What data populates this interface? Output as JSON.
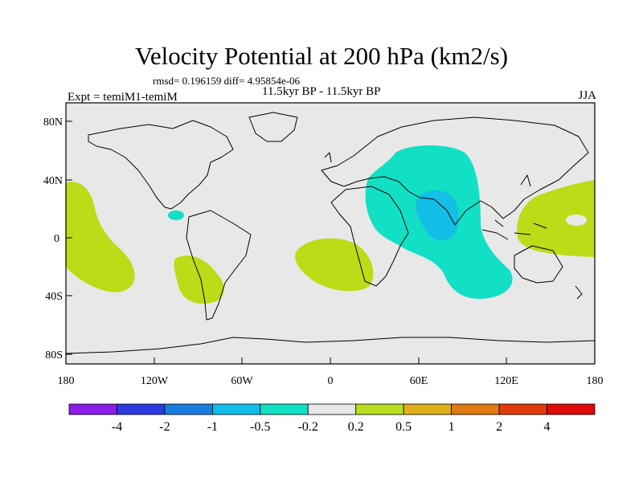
{
  "title": "Velocity Potential at 200 hPa (km2/s)",
  "stats": {
    "rmsd_diff": "rmsd= 0.196159 diff= 4.95854e-06"
  },
  "subtitle": "11.5kyr BP - 11.5kyr BP",
  "experiment": "Expt = temiM1-temiM",
  "season": "JJA",
  "axes": {
    "y_ticks": [
      "80N",
      "40N",
      "0",
      "40S",
      "80S"
    ],
    "x_ticks": [
      "180",
      "120W",
      "60W",
      "0",
      "60E",
      "120E",
      "180"
    ]
  },
  "colorbar": {
    "labels": [
      "-4",
      "-2",
      "-1",
      "-0.5",
      "-0.2",
      "0.2",
      "0.5",
      "1",
      "2",
      "4"
    ],
    "colors": [
      "#8a1ee8",
      "#2a3ae0",
      "#1a7ee0",
      "#12bce8",
      "#12e0c4",
      "#e8e8e8",
      "#b8e020",
      "#e0b01a",
      "#e07a12",
      "#e03a0a",
      "#e00a0a"
    ]
  },
  "colors": {
    "ocean_background": "#e8e8e8",
    "positive_fill": "#bbdc16",
    "negative_light_fill": "#12e0c4",
    "negative_mid_fill": "#13bfe6",
    "coast": "#000000"
  }
}
